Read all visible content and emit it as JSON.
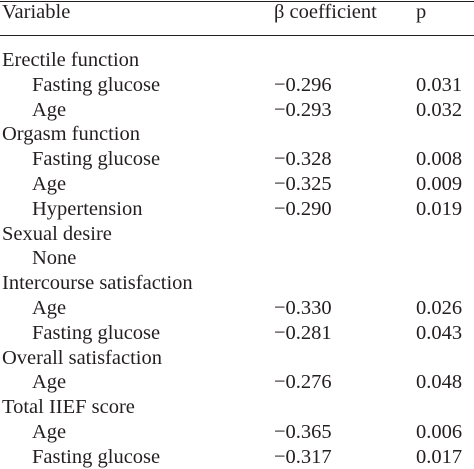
{
  "header": {
    "variable": "Variable",
    "beta": "β coefficient",
    "p": "p"
  },
  "rows": [
    {
      "label": "Erectile function",
      "type": "group",
      "beta": "",
      "p": ""
    },
    {
      "label": "Fasting glucose",
      "type": "item",
      "beta": "−0.296",
      "p": "0.031"
    },
    {
      "label": "Age",
      "type": "item",
      "beta": "−0.293",
      "p": "0.032"
    },
    {
      "label": "Orgasm function",
      "type": "group",
      "beta": "",
      "p": ""
    },
    {
      "label": "Fasting glucose",
      "type": "item",
      "beta": "−0.328",
      "p": "0.008"
    },
    {
      "label": "Age",
      "type": "item",
      "beta": "−0.325",
      "p": "0.009"
    },
    {
      "label": "Hypertension",
      "type": "item",
      "beta": "−0.290",
      "p": "0.019"
    },
    {
      "label": "Sexual desire",
      "type": "group",
      "beta": "",
      "p": ""
    },
    {
      "label": "None",
      "type": "item",
      "beta": "",
      "p": ""
    },
    {
      "label": "Intercourse satisfaction",
      "type": "group",
      "beta": "",
      "p": ""
    },
    {
      "label": "Age",
      "type": "item",
      "beta": "−0.330",
      "p": "0.026"
    },
    {
      "label": "Fasting glucose",
      "type": "item",
      "beta": "−0.281",
      "p": "0.043"
    },
    {
      "label": "Overall satisfaction",
      "type": "group",
      "beta": "",
      "p": ""
    },
    {
      "label": "Age",
      "type": "item",
      "beta": "−0.276",
      "p": "0.048"
    },
    {
      "label": "Total IIEF score",
      "type": "group",
      "beta": "",
      "p": ""
    },
    {
      "label": "Age",
      "type": "item",
      "beta": "−0.365",
      "p": "0.006"
    },
    {
      "label": "Fasting glucose",
      "type": "item",
      "beta": "−0.317",
      "p": "0.017"
    }
  ]
}
